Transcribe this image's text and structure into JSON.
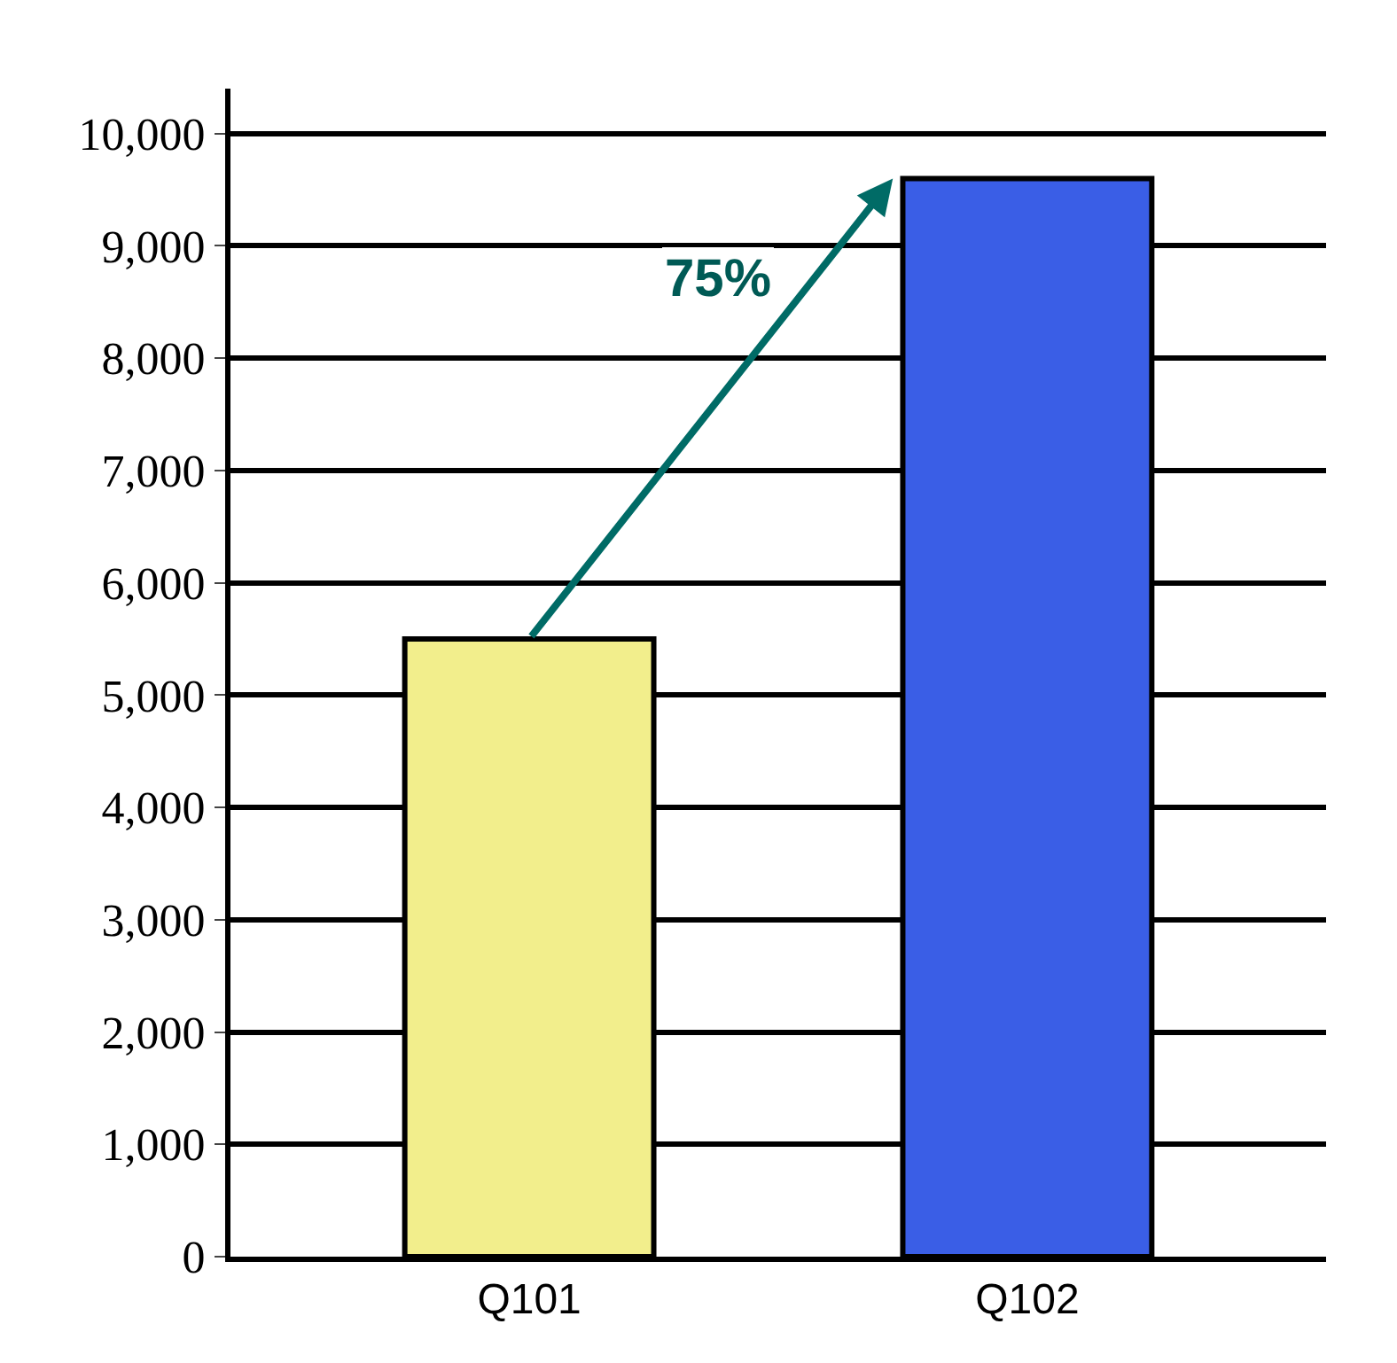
{
  "chart_data": {
    "type": "bar",
    "categories": [
      "Q101",
      "Q102"
    ],
    "values": [
      5500,
      9600
    ],
    "colors": [
      "#f2ee8c",
      "#3a5ee6"
    ],
    "ylim": [
      0,
      10400
    ],
    "yticks": [
      {
        "value": 0,
        "label": "0"
      },
      {
        "value": 1000,
        "label": "1,000"
      },
      {
        "value": 2000,
        "label": "2,000"
      },
      {
        "value": 3000,
        "label": "3,000"
      },
      {
        "value": 4000,
        "label": "4,000"
      },
      {
        "value": 5000,
        "label": "5,000"
      },
      {
        "value": 6000,
        "label": "6,000"
      },
      {
        "value": 7000,
        "label": "7,000"
      },
      {
        "value": 8000,
        "label": "8,000"
      },
      {
        "value": 9000,
        "label": "9,000"
      },
      {
        "value": 10000,
        "label": "10,000"
      }
    ],
    "grid": "y",
    "annotations": [
      "75%"
    ]
  }
}
